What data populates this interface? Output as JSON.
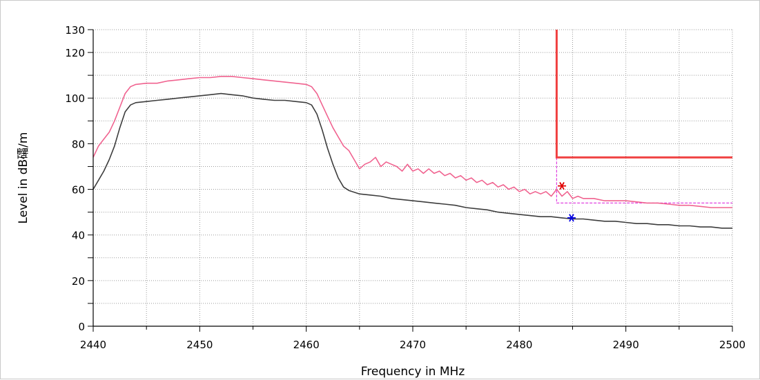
{
  "chart_data": {
    "type": "line",
    "title": "",
    "xlabel": "Frequency in MHz",
    "ylabel": "Level in dB礵/m",
    "xlim": [
      2440,
      2500
    ],
    "ylim": [
      0,
      130
    ],
    "x_ticks": [
      2440,
      2450,
      2460,
      2470,
      2480,
      2490,
      2500
    ],
    "x_minor_step": 5,
    "y_ticks": [
      0,
      20,
      40,
      60,
      80,
      100,
      120,
      130
    ],
    "y_minor_step": 10,
    "grid": true,
    "legend": "none",
    "series": [
      {
        "color": "#f0628f",
        "points": [
          [
            2440,
            74
          ],
          [
            2440.5,
            79
          ],
          [
            2441,
            82
          ],
          [
            2441.5,
            85
          ],
          [
            2442,
            90
          ],
          [
            2442.5,
            96
          ],
          [
            2443,
            102
          ],
          [
            2443.5,
            105
          ],
          [
            2444,
            106
          ],
          [
            2445,
            106.5
          ],
          [
            2446,
            106.5
          ],
          [
            2447,
            107.5
          ],
          [
            2448,
            108
          ],
          [
            2449,
            108.5
          ],
          [
            2450,
            109
          ],
          [
            2451,
            109
          ],
          [
            2452,
            109.5
          ],
          [
            2453,
            109.5
          ],
          [
            2454,
            109
          ],
          [
            2455,
            108.5
          ],
          [
            2456,
            108
          ],
          [
            2457,
            107.5
          ],
          [
            2458,
            107
          ],
          [
            2459,
            106.5
          ],
          [
            2460,
            106
          ],
          [
            2460.5,
            105
          ],
          [
            2461,
            102
          ],
          [
            2461.5,
            97
          ],
          [
            2462,
            92
          ],
          [
            2462.5,
            87
          ],
          [
            2463,
            83
          ],
          [
            2463.5,
            79
          ],
          [
            2464,
            77
          ],
          [
            2464.5,
            73
          ],
          [
            2465,
            69
          ],
          [
            2465.5,
            71
          ],
          [
            2466,
            72
          ],
          [
            2466.5,
            74
          ],
          [
            2467,
            70
          ],
          [
            2467.5,
            72
          ],
          [
            2468,
            71
          ],
          [
            2468.5,
            70
          ],
          [
            2469,
            68
          ],
          [
            2469.5,
            71
          ],
          [
            2470,
            68
          ],
          [
            2470.5,
            69
          ],
          [
            2471,
            67
          ],
          [
            2471.5,
            69
          ],
          [
            2472,
            67
          ],
          [
            2472.5,
            68
          ],
          [
            2473,
            66
          ],
          [
            2473.5,
            67
          ],
          [
            2474,
            65
          ],
          [
            2474.5,
            66
          ],
          [
            2475,
            64
          ],
          [
            2475.5,
            65
          ],
          [
            2476,
            63
          ],
          [
            2476.5,
            64
          ],
          [
            2477,
            62
          ],
          [
            2477.5,
            63
          ],
          [
            2478,
            61
          ],
          [
            2478.5,
            62
          ],
          [
            2479,
            60
          ],
          [
            2479.5,
            61
          ],
          [
            2480,
            59
          ],
          [
            2480.5,
            60
          ],
          [
            2481,
            58
          ],
          [
            2481.5,
            59
          ],
          [
            2482,
            58
          ],
          [
            2482.5,
            59
          ],
          [
            2483,
            57
          ],
          [
            2483.5,
            60
          ],
          [
            2484,
            57
          ],
          [
            2484.5,
            59
          ],
          [
            2485,
            56
          ],
          [
            2485.5,
            57
          ],
          [
            2486,
            56
          ],
          [
            2487,
            56
          ],
          [
            2488,
            55
          ],
          [
            2489,
            55
          ],
          [
            2490,
            55
          ],
          [
            2491,
            54.5
          ],
          [
            2492,
            54
          ],
          [
            2493,
            54
          ],
          [
            2494,
            53.5
          ],
          [
            2495,
            53
          ],
          [
            2496,
            53
          ],
          [
            2497,
            52.5
          ],
          [
            2498,
            52
          ],
          [
            2499,
            52
          ],
          [
            2500,
            52
          ]
        ]
      },
      {
        "color": "#3c3c3c",
        "points": [
          [
            2440,
            60
          ],
          [
            2440.5,
            64
          ],
          [
            2441,
            68
          ],
          [
            2441.5,
            73
          ],
          [
            2442,
            79
          ],
          [
            2442.5,
            87
          ],
          [
            2443,
            94
          ],
          [
            2443.5,
            97
          ],
          [
            2444,
            98
          ],
          [
            2445,
            98.5
          ],
          [
            2446,
            99
          ],
          [
            2447,
            99.5
          ],
          [
            2448,
            100
          ],
          [
            2449,
            100.5
          ],
          [
            2450,
            101
          ],
          [
            2451,
            101.5
          ],
          [
            2452,
            102
          ],
          [
            2453,
            101.5
          ],
          [
            2454,
            101
          ],
          [
            2455,
            100
          ],
          [
            2456,
            99.5
          ],
          [
            2457,
            99
          ],
          [
            2458,
            99
          ],
          [
            2459,
            98.5
          ],
          [
            2460,
            98
          ],
          [
            2460.5,
            97
          ],
          [
            2461,
            93
          ],
          [
            2461.5,
            86
          ],
          [
            2462,
            78
          ],
          [
            2462.5,
            71
          ],
          [
            2463,
            65
          ],
          [
            2463.5,
            61
          ],
          [
            2464,
            59.5
          ],
          [
            2465,
            58
          ],
          [
            2466,
            57.5
          ],
          [
            2467,
            57
          ],
          [
            2468,
            56
          ],
          [
            2469,
            55.5
          ],
          [
            2470,
            55
          ],
          [
            2471,
            54.5
          ],
          [
            2472,
            54
          ],
          [
            2473,
            53.5
          ],
          [
            2474,
            53
          ],
          [
            2475,
            52
          ],
          [
            2476,
            51.5
          ],
          [
            2477,
            51
          ],
          [
            2478,
            50
          ],
          [
            2479,
            49.5
          ],
          [
            2480,
            49
          ],
          [
            2481,
            48.5
          ],
          [
            2482,
            48
          ],
          [
            2483,
            48
          ],
          [
            2484,
            47.5
          ],
          [
            2485,
            47
          ],
          [
            2486,
            47
          ],
          [
            2487,
            46.5
          ],
          [
            2488,
            46
          ],
          [
            2489,
            46
          ],
          [
            2490,
            45.5
          ],
          [
            2491,
            45
          ],
          [
            2492,
            45
          ],
          [
            2493,
            44.5
          ],
          [
            2494,
            44.5
          ],
          [
            2495,
            44
          ],
          [
            2496,
            44
          ],
          [
            2497,
            43.5
          ],
          [
            2498,
            43.5
          ],
          [
            2499,
            43
          ],
          [
            2500,
            43
          ]
        ]
      }
    ],
    "limit_line": {
      "color": "#f04040",
      "points": [
        [
          2483.5,
          130
        ],
        [
          2483.5,
          74
        ],
        [
          2500,
          74
        ]
      ]
    },
    "limit_line_dashed": {
      "color": "#e040e0",
      "points": [
        [
          2483.5,
          74
        ],
        [
          2483.5,
          54
        ],
        [
          2500,
          54
        ]
      ]
    },
    "markers": [
      {
        "x": 2484,
        "y": 61.5,
        "color": "#e00000"
      },
      {
        "x": 2484.9,
        "y": 47.5,
        "color": "#0000e0"
      }
    ]
  }
}
